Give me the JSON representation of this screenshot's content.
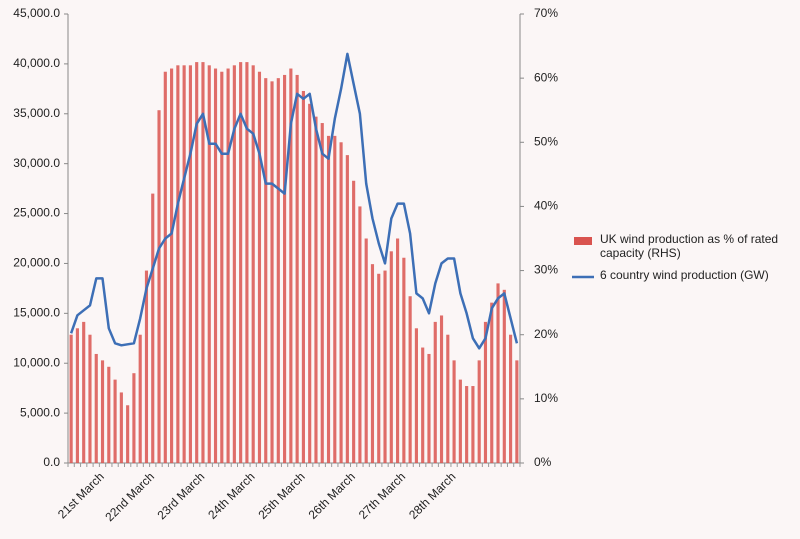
{
  "chart_data": {
    "type": "combo",
    "categories": [
      null,
      null,
      null,
      null,
      null,
      "21st March",
      null,
      null,
      null,
      null,
      null,
      null,
      null,
      "22nd March",
      null,
      null,
      null,
      null,
      null,
      null,
      null,
      "23rd March",
      null,
      null,
      null,
      null,
      null,
      null,
      null,
      "24th March",
      null,
      null,
      null,
      null,
      null,
      null,
      null,
      "25th March",
      null,
      null,
      null,
      null,
      null,
      null,
      null,
      "26th March",
      null,
      null,
      null,
      null,
      null,
      null,
      null,
      "27th March",
      null,
      null,
      null,
      null,
      null,
      null,
      null,
      "28th March",
      null,
      null,
      null,
      null,
      null,
      null,
      null,
      null,
      null,
      null
    ],
    "series": [
      {
        "name": "UK wind production as % of rated capacity (RHS)",
        "type": "bar",
        "axis": "y2",
        "color": "#d9534f",
        "values": [
          20,
          21,
          22,
          20,
          17,
          16,
          15,
          13,
          11,
          9,
          14,
          20,
          30,
          42,
          55,
          61,
          61.5,
          62,
          62,
          62,
          62.5,
          62.5,
          62,
          61.5,
          61,
          61.5,
          62,
          62.5,
          62.5,
          62,
          61,
          60,
          59.5,
          60,
          60.5,
          61.5,
          60.5,
          58,
          56,
          54,
          53,
          51,
          51,
          50,
          48,
          44,
          40,
          35,
          31,
          29.5,
          30,
          33,
          35,
          32,
          26,
          21,
          18,
          17,
          22,
          23,
          20,
          16,
          13,
          12,
          12,
          16,
          22,
          25,
          28,
          27,
          20,
          16
        ]
      },
      {
        "name": "6 country wind production (GW)",
        "type": "line",
        "axis": "y",
        "color": "#3d6fb6",
        "values": [
          13000,
          14800,
          15300,
          15800,
          18500,
          18500,
          13500,
          12000,
          11800,
          11900,
          12000,
          14500,
          17500,
          19500,
          21500,
          22500,
          23000,
          26000,
          28500,
          31000,
          34000,
          35000,
          32000,
          32000,
          31000,
          31000,
          33500,
          35000,
          33500,
          33000,
          31000,
          28000,
          28000,
          27500,
          27000,
          34000,
          37000,
          36500,
          37000,
          33500,
          31000,
          30500,
          34500,
          37500,
          41000,
          38000,
          35000,
          28000,
          24500,
          22000,
          20000,
          24500,
          26000,
          26000,
          23000,
          17000,
          16500,
          15000,
          18000,
          20000,
          20500,
          20500,
          17000,
          15000,
          12500,
          11500,
          12500,
          15500,
          16500,
          17000,
          14500,
          12000
        ]
      }
    ],
    "ylim": [
      0,
      45000
    ],
    "yticks": [
      {
        "value": 0,
        "label": "0.0"
      },
      {
        "value": 5000,
        "label": "5,000.0"
      },
      {
        "value": 10000,
        "label": "10,000.0"
      },
      {
        "value": 15000,
        "label": "15,000.0"
      },
      {
        "value": 20000,
        "label": "20,000.0"
      },
      {
        "value": 25000,
        "label": "25,000.0"
      },
      {
        "value": 30000,
        "label": "30,000.0"
      },
      {
        "value": 35000,
        "label": "35,000.0"
      },
      {
        "value": 40000,
        "label": "40,000.0"
      },
      {
        "value": 45000,
        "label": "45,000.0"
      }
    ],
    "y2lim": [
      0,
      70
    ],
    "y2ticks": [
      {
        "value": 0,
        "label": "0%"
      },
      {
        "value": 10,
        "label": "10%"
      },
      {
        "value": 20,
        "label": "20%"
      },
      {
        "value": 30,
        "label": "30%"
      },
      {
        "value": 40,
        "label": "40%"
      },
      {
        "value": 50,
        "label": "50%"
      },
      {
        "value": 60,
        "label": "60%"
      },
      {
        "value": 70,
        "label": "70%"
      }
    ],
    "grid": false,
    "legend": "right"
  }
}
